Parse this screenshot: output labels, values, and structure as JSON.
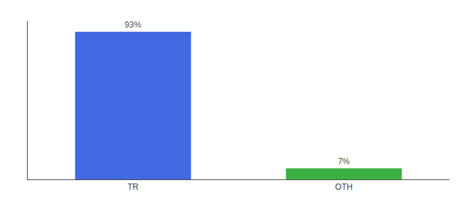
{
  "chart_data": {
    "type": "bar",
    "categories": [
      "TR",
      "OTH"
    ],
    "values": [
      93,
      7
    ],
    "value_labels": [
      "93%",
      "7%"
    ],
    "colors": [
      "#4169e1",
      "#3cb043"
    ],
    "ylim": [
      0,
      100
    ],
    "grid": false,
    "data_labels": true,
    "tick_labels": "x"
  }
}
